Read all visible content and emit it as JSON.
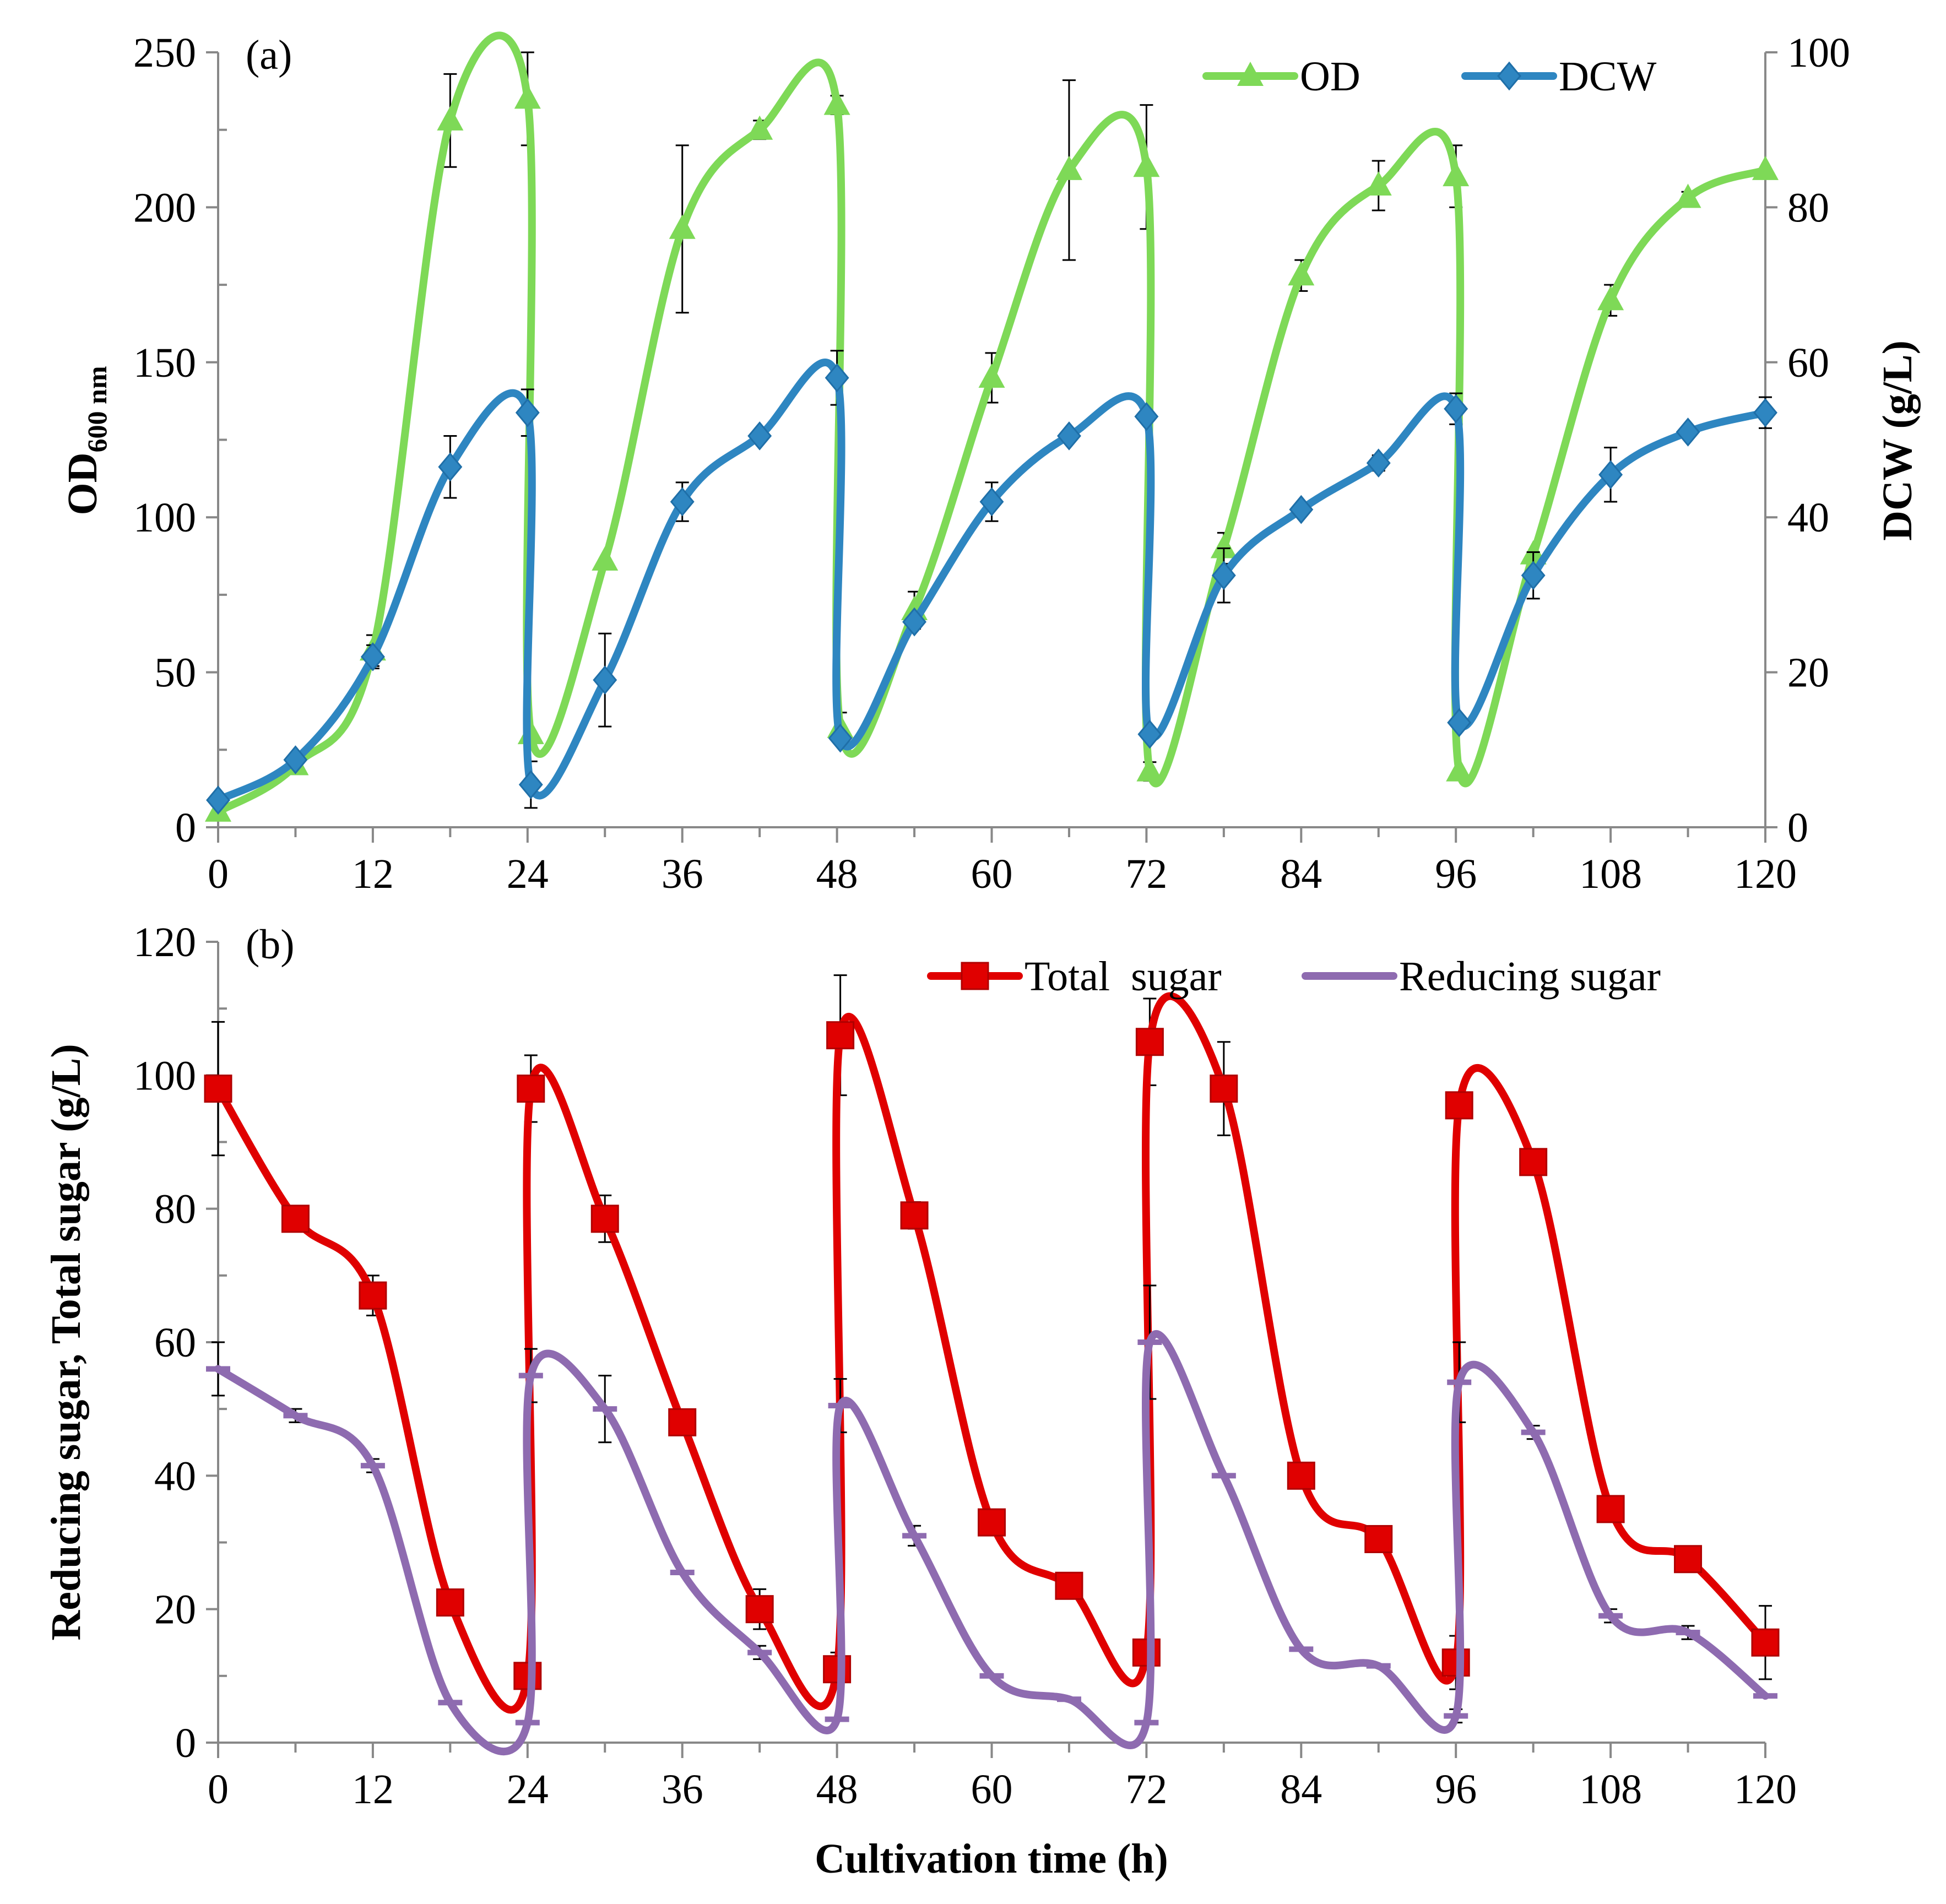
{
  "chart_data": [
    {
      "type": "line",
      "panel_label": "(a)",
      "x_ticks": [
        "0",
        "12",
        "24",
        "36",
        "48",
        "60",
        "72",
        "84",
        "96",
        "108",
        "120"
      ],
      "xlim": [
        0,
        120
      ],
      "ylabel": "OD",
      "ylabel_sub": "600 nm",
      "ylim": [
        0,
        250
      ],
      "y_ticks": [
        "0",
        "50",
        "100",
        "150",
        "200",
        "250"
      ],
      "y2label": "DCW (g/L)",
      "y2lim": [
        0,
        100
      ],
      "y2_ticks": [
        "0",
        "20",
        "40",
        "60",
        "80",
        "100"
      ],
      "legend_position": "top-right",
      "series": [
        {
          "name": "OD",
          "axis": "left",
          "color": "#7ED957",
          "marker": "triangle",
          "x": [
            0,
            6,
            12,
            18,
            24,
            24,
            30,
            36,
            42,
            48,
            48,
            54,
            60,
            66,
            72,
            72,
            78,
            84,
            90,
            96,
            96,
            102,
            108,
            114,
            120
          ],
          "y": [
            5,
            20,
            57,
            228,
            235,
            30,
            86,
            193,
            225,
            233,
            32,
            70,
            145,
            212,
            213,
            18,
            90,
            178,
            207,
            210,
            18,
            88,
            170,
            203,
            212
          ],
          "err": [
            0,
            0,
            5,
            15,
            15,
            0,
            0,
            27,
            3,
            3,
            5,
            6,
            8,
            29,
            20,
            3,
            5,
            5,
            8,
            10,
            0,
            0,
            5,
            2,
            0
          ]
        },
        {
          "name": "DCW",
          "axis": "right",
          "color": "#2E86C1",
          "marker": "diamond",
          "x": [
            0,
            6,
            12,
            18,
            24,
            24,
            30,
            36,
            42,
            48,
            48,
            54,
            60,
            66,
            72,
            72,
            78,
            84,
            90,
            96,
            96,
            102,
            108,
            114,
            120
          ],
          "y": [
            3.5,
            8.7,
            22,
            46.5,
            53.5,
            5.5,
            19,
            42,
            50.5,
            58,
            11.5,
            26.5,
            42,
            50.5,
            53,
            12,
            32.5,
            41,
            47,
            54,
            13.5,
            32.5,
            45.5,
            51,
            53.5
          ],
          "err": [
            0,
            0,
            1.5,
            4,
            3,
            3,
            6,
            2.5,
            0,
            3.5,
            0,
            0,
            2.5,
            0,
            0,
            0,
            3.5,
            0,
            1,
            2,
            0,
            3,
            3.5,
            0,
            2
          ]
        }
      ]
    },
    {
      "type": "line",
      "panel_label": "(b)",
      "xlabel": "Cultivation time (h)",
      "x_ticks": [
        "0",
        "12",
        "24",
        "36",
        "48",
        "60",
        "72",
        "84",
        "96",
        "108",
        "120"
      ],
      "xlim": [
        0,
        120
      ],
      "ylabel": "Reducing sugar, Total sugar (g/L)",
      "ylim": [
        0,
        120
      ],
      "y_ticks": [
        "0",
        "20",
        "40",
        "60",
        "80",
        "100",
        "120"
      ],
      "legend_position": "top-right",
      "series": [
        {
          "name": "Total  sugar",
          "color": "#E00000",
          "marker": "square",
          "x": [
            0,
            6,
            12,
            18,
            24,
            24,
            30,
            36,
            42,
            48,
            48,
            54,
            60,
            66,
            72,
            72,
            78,
            84,
            90,
            96,
            96,
            102,
            108,
            114,
            120
          ],
          "y": [
            98,
            78.5,
            67,
            21,
            10,
            98,
            78.5,
            48,
            20,
            11,
            106,
            79,
            33,
            23.5,
            13.5,
            105,
            98,
            40,
            30.5,
            12,
            95.5,
            87,
            35,
            27.5,
            15
          ],
          "err": [
            10,
            1.5,
            3,
            0,
            0,
            5,
            3.5,
            0,
            3,
            2.5,
            9,
            2,
            0,
            0,
            0,
            6.5,
            7,
            0,
            0,
            4,
            0,
            0,
            0,
            0,
            5.5
          ]
        },
        {
          "name": "Reducing sugar",
          "color": "#8E6BB0",
          "marker": "dash",
          "x": [
            0,
            6,
            12,
            18,
            24,
            24,
            30,
            36,
            42,
            48,
            48,
            54,
            60,
            66,
            72,
            72,
            78,
            84,
            90,
            96,
            96,
            102,
            108,
            114,
            120
          ],
          "y": [
            56,
            49,
            41.5,
            6,
            3,
            55,
            50,
            25.5,
            13.5,
            3.5,
            50.5,
            31,
            10,
            6.5,
            3,
            60,
            40,
            14,
            11.5,
            4,
            54,
            46.5,
            19,
            16.5,
            7
          ],
          "err": [
            4,
            1,
            1,
            0,
            0,
            4,
            5,
            0,
            1,
            0,
            4,
            1.5,
            0,
            0,
            0,
            8.5,
            0,
            0,
            0,
            1,
            6,
            1,
            1,
            1,
            0
          ]
        }
      ]
    }
  ]
}
